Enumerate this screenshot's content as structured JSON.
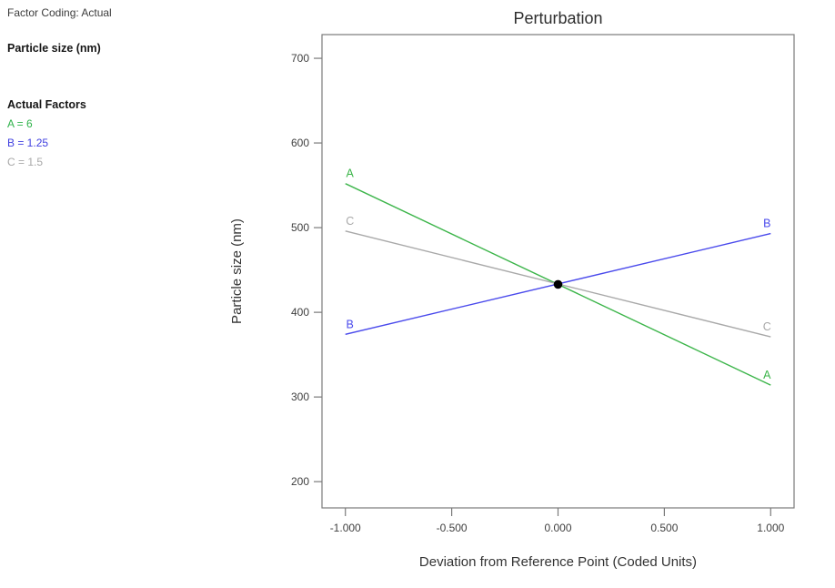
{
  "info": {
    "factor_coding": "Factor Coding: Actual",
    "response": "Particle size (nm)",
    "actual_factors_heading": "Actual Factors",
    "factors": [
      {
        "text": "A = 6",
        "color": "#2eb24a"
      },
      {
        "text": "B = 1.25",
        "color": "#4040e0"
      },
      {
        "text": "C = 1.5",
        "color": "#a8a8a8"
      }
    ]
  },
  "chart_data": {
    "type": "line",
    "title": "Perturbation",
    "xlabel": "Deviation from Reference Point (Coded Units)",
    "ylabel": "Particle size (nm)",
    "x_tick_values": [
      -1.0,
      -0.5,
      0.0,
      0.5,
      1.0
    ],
    "x_tick_labels": [
      "-1.000",
      "-0.500",
      "0.000",
      "0.500",
      "1.000"
    ],
    "y_tick_values": [
      200,
      300,
      400,
      500,
      600,
      700
    ],
    "y_tick_labels": [
      "200",
      "300",
      "400",
      "500",
      "600",
      "700"
    ],
    "xlim": [
      -1.11,
      1.11
    ],
    "ylim": [
      169,
      728
    ],
    "grid": false,
    "legend_position": "inline-end-labels",
    "series": [
      {
        "name": "A",
        "color": "#3cb54a",
        "x": [
          -1,
          1
        ],
        "values": [
          552,
          314
        ]
      },
      {
        "name": "B",
        "color": "#4a4aec",
        "x": [
          -1,
          1
        ],
        "values": [
          374,
          493
        ]
      },
      {
        "name": "C",
        "color": "#a9a9a9",
        "x": [
          -1,
          1
        ],
        "values": [
          496,
          371
        ]
      }
    ],
    "reference_point": {
      "x": 0,
      "value": 433,
      "color": "#000000"
    },
    "colors": {
      "frame": "#7a7a7a",
      "tick_text": "#3f3f3f",
      "title_text": "#2e2e2e"
    }
  }
}
